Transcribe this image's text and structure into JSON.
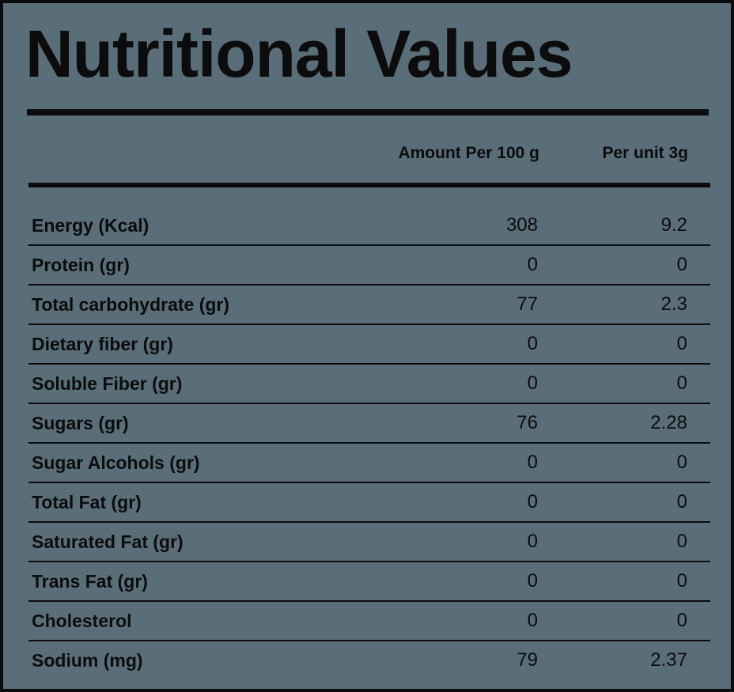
{
  "title": "Nutritional Values",
  "headers": {
    "per_100g": "Amount Per 100 g",
    "per_unit": "Per unit 3g"
  },
  "rows": [
    {
      "label": "Energy (Kcal)",
      "per_100g": "308",
      "per_unit": "9.2"
    },
    {
      "label": "Protein (gr)",
      "per_100g": "0",
      "per_unit": "0"
    },
    {
      "label": "Total carbohydrate (gr)",
      "per_100g": "77",
      "per_unit": "2.3"
    },
    {
      "label": "Dietary fiber (gr)",
      "per_100g": "0",
      "per_unit": "0"
    },
    {
      "label": "Soluble Fiber (gr)",
      "per_100g": "0",
      "per_unit": "0"
    },
    {
      "label": "Sugars (gr)",
      "per_100g": "76",
      "per_unit": "2.28"
    },
    {
      "label": "Sugar Alcohols (gr)",
      "per_100g": "0",
      "per_unit": "0"
    },
    {
      "label": "Total Fat (gr)",
      "per_100g": "0",
      "per_unit": "0"
    },
    {
      "label": "Saturated Fat (gr)",
      "per_100g": "0",
      "per_unit": "0"
    },
    {
      "label": "Trans Fat (gr)",
      "per_100g": "0",
      "per_unit": "0"
    },
    {
      "label": "Cholesterol",
      "per_100g": "0",
      "per_unit": "0"
    },
    {
      "label": "Sodium (mg)",
      "per_100g": "79",
      "per_unit": "2.37"
    }
  ],
  "colors": {
    "background": "#5a6e79",
    "ink": "#0c0c0c"
  }
}
